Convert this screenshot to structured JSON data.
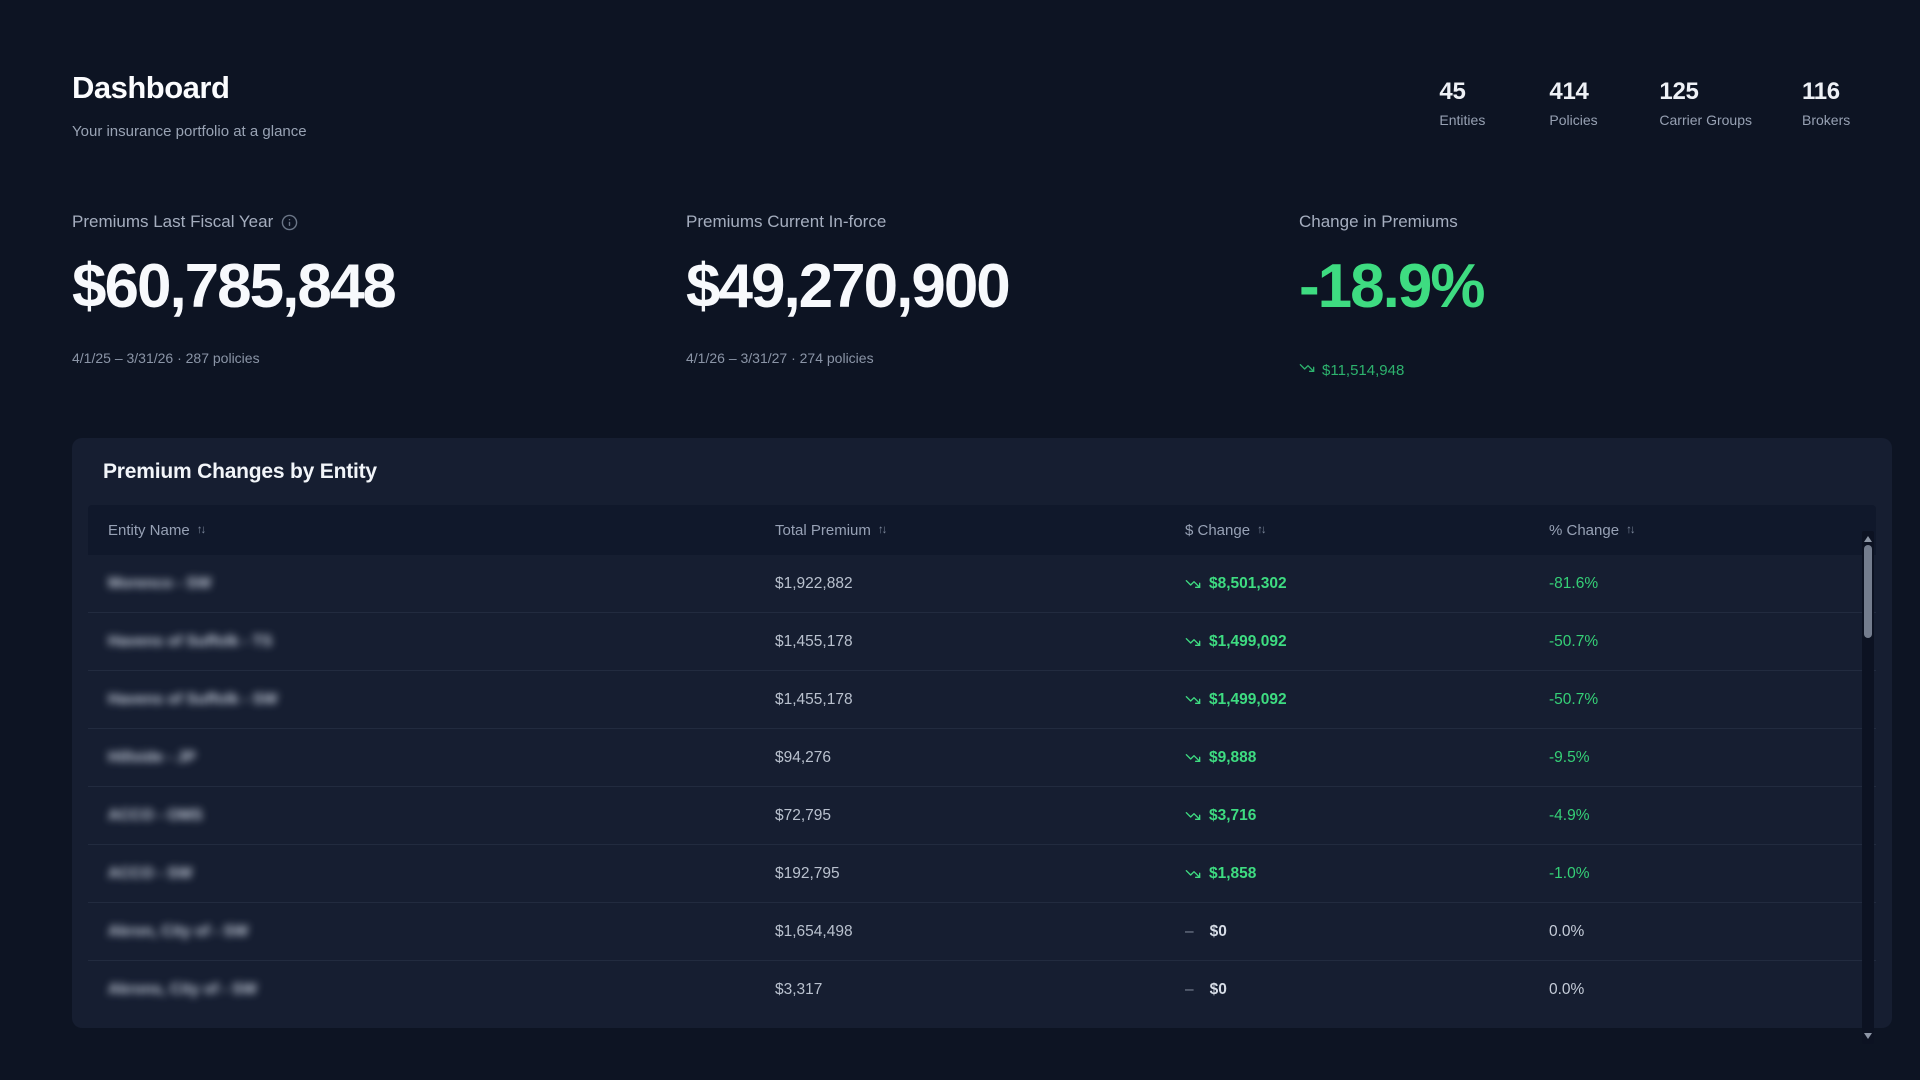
{
  "page": {
    "title": "Dashboard",
    "subtitle": "Your insurance portfolio at a glance"
  },
  "stats": [
    {
      "value": "45",
      "label": "Entities"
    },
    {
      "value": "414",
      "label": "Policies"
    },
    {
      "value": "125",
      "label": "Carrier Groups"
    },
    {
      "value": "116",
      "label": "Brokers"
    }
  ],
  "kpis": {
    "last_fiscal": {
      "label": "Premiums Last Fiscal Year",
      "value": "$60,785,848",
      "period": "4/1/25 – 3/31/26 · 287 policies"
    },
    "current_inforce": {
      "label": "Premiums Current In-force",
      "value": "$49,270,900",
      "period": "4/1/26 – 3/31/27 · 274 policies"
    },
    "change": {
      "label": "Change in Premiums",
      "value": "-18.9%",
      "amount": "$11,514,948"
    }
  },
  "table": {
    "title": "Premium Changes by Entity",
    "columns": [
      "Entity Name",
      "Total Premium",
      "$ Change",
      "% Change"
    ],
    "entity_names_redacted": true,
    "rows": [
      {
        "entity": "Morenco - SW",
        "premium": "$1,922,882",
        "change": "$8,501,302",
        "pct": "-81.6%",
        "dir": "down"
      },
      {
        "entity": "Havens of Suffolk - TS",
        "premium": "$1,455,178",
        "change": "$1,499,092",
        "pct": "-50.7%",
        "dir": "down"
      },
      {
        "entity": "Havens of Suffolk - SW",
        "premium": "$1,455,178",
        "change": "$1,499,092",
        "pct": "-50.7%",
        "dir": "down"
      },
      {
        "entity": "Hillside - JP",
        "premium": "$94,276",
        "change": "$9,888",
        "pct": "-9.5%",
        "dir": "down"
      },
      {
        "entity": "ACCO - OMS",
        "premium": "$72,795",
        "change": "$3,716",
        "pct": "-4.9%",
        "dir": "down"
      },
      {
        "entity": "ACCO - SW",
        "premium": "$192,795",
        "change": "$1,858",
        "pct": "-1.0%",
        "dir": "down"
      },
      {
        "entity": "Akron, City of - SW",
        "premium": "$1,654,498",
        "change": "$0",
        "pct": "0.0%",
        "dir": "flat"
      },
      {
        "entity": "Akrons, City of - SW",
        "premium": "$3,317",
        "change": "$0",
        "pct": "0.0%",
        "dir": "flat"
      }
    ]
  },
  "icons": {
    "sort": "↑↓",
    "minus": "–",
    "trend_down": "trending-down",
    "info": "info-circle"
  },
  "colors": {
    "green": "#3edc81",
    "green_dark": "#2db36e",
    "green_pct": "#35d077",
    "page_bg": "#0d1423",
    "card_bg": "#161e31",
    "header_row_bg": "#10182b"
  }
}
